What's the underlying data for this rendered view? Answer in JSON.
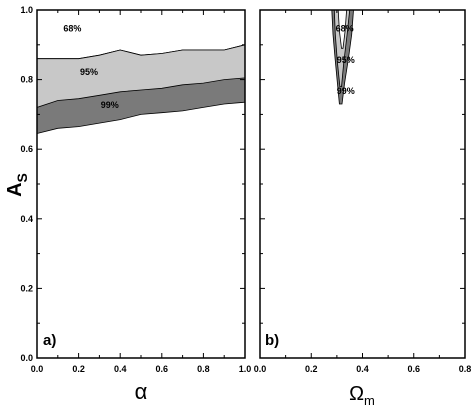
{
  "chart_data": [
    {
      "type": "contour",
      "panel_label": "a)",
      "xlabel": "α",
      "ylabel_main": "A",
      "ylabel_sub": "S",
      "xlim": [
        0.0,
        1.0
      ],
      "ylim": [
        0.0,
        1.0
      ],
      "xticks": [
        "0.0",
        "0.2",
        "0.4",
        "0.6",
        "0.8",
        "1.0"
      ],
      "yticks": [
        "0.0",
        "0.2",
        "0.4",
        "0.6",
        "0.8",
        "1.0"
      ],
      "colors": {
        "band95": "#c8c8c8",
        "band99": "#7a7a7a",
        "inner": "#ffffff",
        "line": "#000000"
      },
      "regions": [
        {
          "label": "99%",
          "label_at": [
            0.35,
            0.725
          ],
          "upper": [
            [
              0.0,
              0.86
            ],
            [
              0.1,
              0.86
            ],
            [
              0.2,
              0.86
            ],
            [
              0.3,
              0.87
            ],
            [
              0.4,
              0.885
            ],
            [
              0.5,
              0.87
            ],
            [
              0.6,
              0.875
            ],
            [
              0.7,
              0.885
            ],
            [
              0.8,
              0.885
            ],
            [
              0.9,
              0.885
            ],
            [
              1.0,
              0.9
            ]
          ],
          "lower": [
            [
              0.0,
              0.645
            ],
            [
              0.1,
              0.66
            ],
            [
              0.2,
              0.665
            ],
            [
              0.3,
              0.675
            ],
            [
              0.4,
              0.685
            ],
            [
              0.5,
              0.7
            ],
            [
              0.6,
              0.705
            ],
            [
              0.7,
              0.71
            ],
            [
              0.8,
              0.72
            ],
            [
              0.9,
              0.73
            ],
            [
              1.0,
              0.735
            ]
          ]
        },
        {
          "label": "95%",
          "label_at": [
            0.25,
            0.82
          ],
          "upper": [
            [
              0.0,
              0.86
            ],
            [
              0.1,
              0.86
            ],
            [
              0.2,
              0.86
            ],
            [
              0.3,
              0.87
            ],
            [
              0.4,
              0.885
            ],
            [
              0.5,
              0.87
            ],
            [
              0.6,
              0.875
            ],
            [
              0.7,
              0.885
            ],
            [
              0.8,
              0.885
            ],
            [
              0.9,
              0.885
            ],
            [
              1.0,
              0.9
            ]
          ],
          "lower": [
            [
              0.0,
              0.72
            ],
            [
              0.1,
              0.74
            ],
            [
              0.2,
              0.745
            ],
            [
              0.3,
              0.755
            ],
            [
              0.4,
              0.765
            ],
            [
              0.5,
              0.77
            ],
            [
              0.6,
              0.775
            ],
            [
              0.7,
              0.785
            ],
            [
              0.8,
              0.79
            ],
            [
              0.9,
              0.8
            ],
            [
              1.0,
              0.805
            ]
          ]
        },
        {
          "label": "68%",
          "label_at": [
            0.17,
            0.945
          ]
        }
      ]
    },
    {
      "type": "contour",
      "panel_label": "b)",
      "xlabel_main": "Ω",
      "xlabel_sub": "m",
      "xlim": [
        0.0,
        0.8
      ],
      "ylim": [
        0.0,
        1.0
      ],
      "xticks": [
        "0.0",
        "0.2",
        "0.4",
        "0.6",
        "0.8"
      ],
      "colors": {
        "band95": "#c8c8c8",
        "band99": "#7a7a7a",
        "inner": "#ffffff",
        "line": "#000000"
      },
      "regions": [
        {
          "label": "99%",
          "label_at": [
            0.335,
            0.765
          ],
          "polygon": [
            [
              0.28,
              1.0
            ],
            [
              0.285,
              0.93
            ],
            [
              0.293,
              0.86
            ],
            [
              0.302,
              0.79
            ],
            [
              0.31,
              0.73
            ],
            [
              0.32,
              0.73
            ],
            [
              0.33,
              0.79
            ],
            [
              0.345,
              0.86
            ],
            [
              0.358,
              0.93
            ],
            [
              0.365,
              1.0
            ]
          ]
        },
        {
          "label": "95%",
          "label_at": [
            0.335,
            0.855
          ],
          "polygon": [
            [
              0.29,
              1.0
            ],
            [
              0.294,
              0.93
            ],
            [
              0.302,
              0.85
            ],
            [
              0.312,
              0.78
            ],
            [
              0.318,
              0.78
            ],
            [
              0.327,
              0.85
            ],
            [
              0.34,
              0.93
            ],
            [
              0.35,
              1.0
            ]
          ]
        },
        {
          "label": "68%",
          "label_at": [
            0.33,
            0.945
          ],
          "polygon": [
            [
              0.305,
              1.0
            ],
            [
              0.31,
              0.94
            ],
            [
              0.318,
              0.89
            ],
            [
              0.324,
              0.89
            ],
            [
              0.332,
              0.94
            ],
            [
              0.338,
              1.0
            ]
          ]
        }
      ]
    }
  ]
}
